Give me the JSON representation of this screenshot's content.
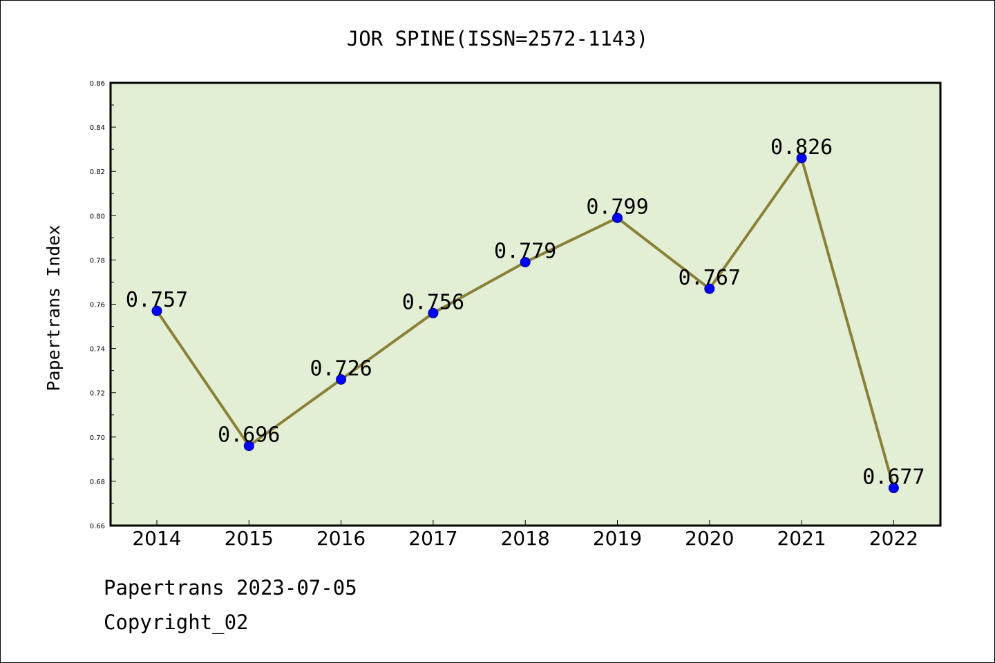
{
  "chart_data": {
    "type": "line",
    "title": "JOR SPINE(ISSN=2572-1143)",
    "xlabel": "",
    "ylabel": "Papertrans Index",
    "categories": [
      "2014",
      "2015",
      "2016",
      "2017",
      "2018",
      "2019",
      "2020",
      "2021",
      "2022"
    ],
    "series": [
      {
        "values": [
          0.757,
          0.696,
          0.726,
          0.756,
          0.779,
          0.799,
          0.767,
          0.826,
          0.677
        ],
        "data_labels": [
          "0.757",
          "0.696",
          "0.726",
          "0.756",
          "0.779",
          "0.799",
          "0.767",
          "0.826",
          "0.677"
        ]
      }
    ],
    "ylim": [
      0.66,
      0.86
    ],
    "yticks": [
      "0.66",
      "0.68",
      "0.70",
      "0.72",
      "0.74",
      "0.76",
      "0.78",
      "0.80",
      "0.82",
      "0.84",
      "0.86"
    ],
    "grid": false,
    "legend": "none",
    "colors": {
      "plot_background": "#e2efd5",
      "line": "#8b8038",
      "marker": "#0000ff",
      "axis": "#000000"
    }
  },
  "footer": {
    "source": "Papertrans 2023-07-05",
    "copyright": "Copyright_02"
  }
}
